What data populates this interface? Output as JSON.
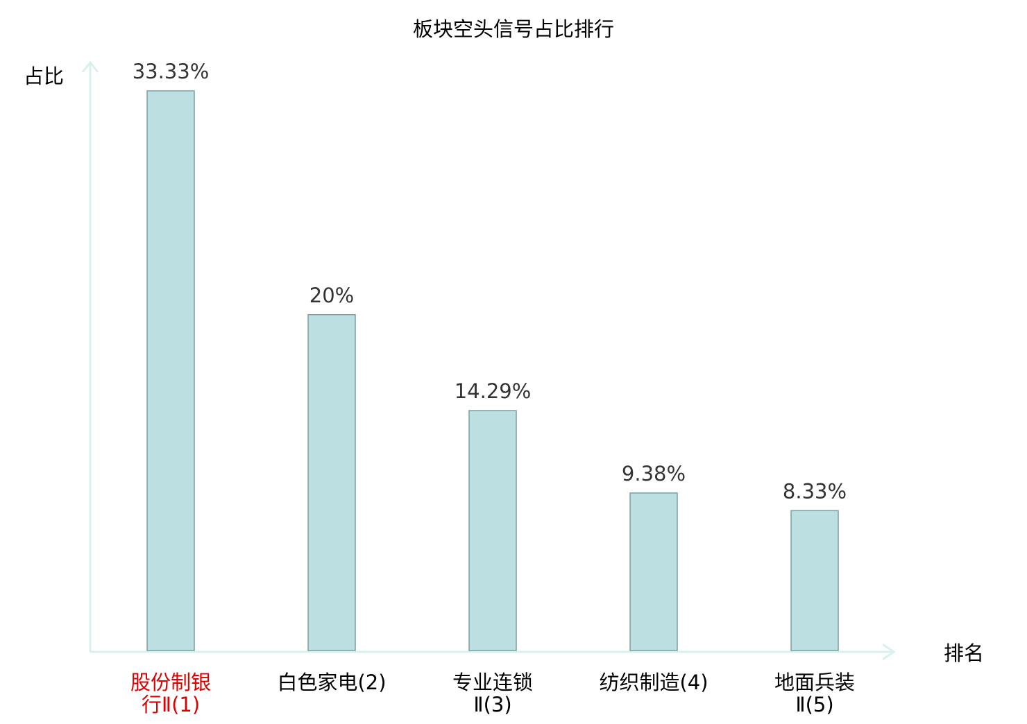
{
  "chart_data": {
    "type": "bar",
    "title": "板块空头信号占比排行",
    "xlabel": "排名",
    "ylabel": "占比",
    "categories": [
      {
        "lines": [
          "股份制银",
          "行Ⅱ(1)"
        ],
        "highlight": true
      },
      {
        "lines": [
          "白色家电(2)"
        ],
        "highlight": false
      },
      {
        "lines": [
          "专业连锁",
          "Ⅱ(3)"
        ],
        "highlight": false
      },
      {
        "lines": [
          "纺织制造(4)"
        ],
        "highlight": false
      },
      {
        "lines": [
          "地面兵装",
          "Ⅱ(5)"
        ],
        "highlight": false
      }
    ],
    "values": [
      33.33,
      20,
      14.29,
      9.38,
      8.33
    ],
    "value_labels": [
      "33.33%",
      "20%",
      "14.29%",
      "9.38%",
      "8.33%"
    ],
    "ylim": [
      0,
      33.33
    ],
    "grid": false,
    "legend": "none",
    "colors": {
      "bar_fill": "#bce0e1",
      "bar_stroke": "#7f9fa0",
      "axis": "#d9f1ee",
      "text": "#000000",
      "value_text": "#333333",
      "highlight_text": "#e00000"
    }
  }
}
